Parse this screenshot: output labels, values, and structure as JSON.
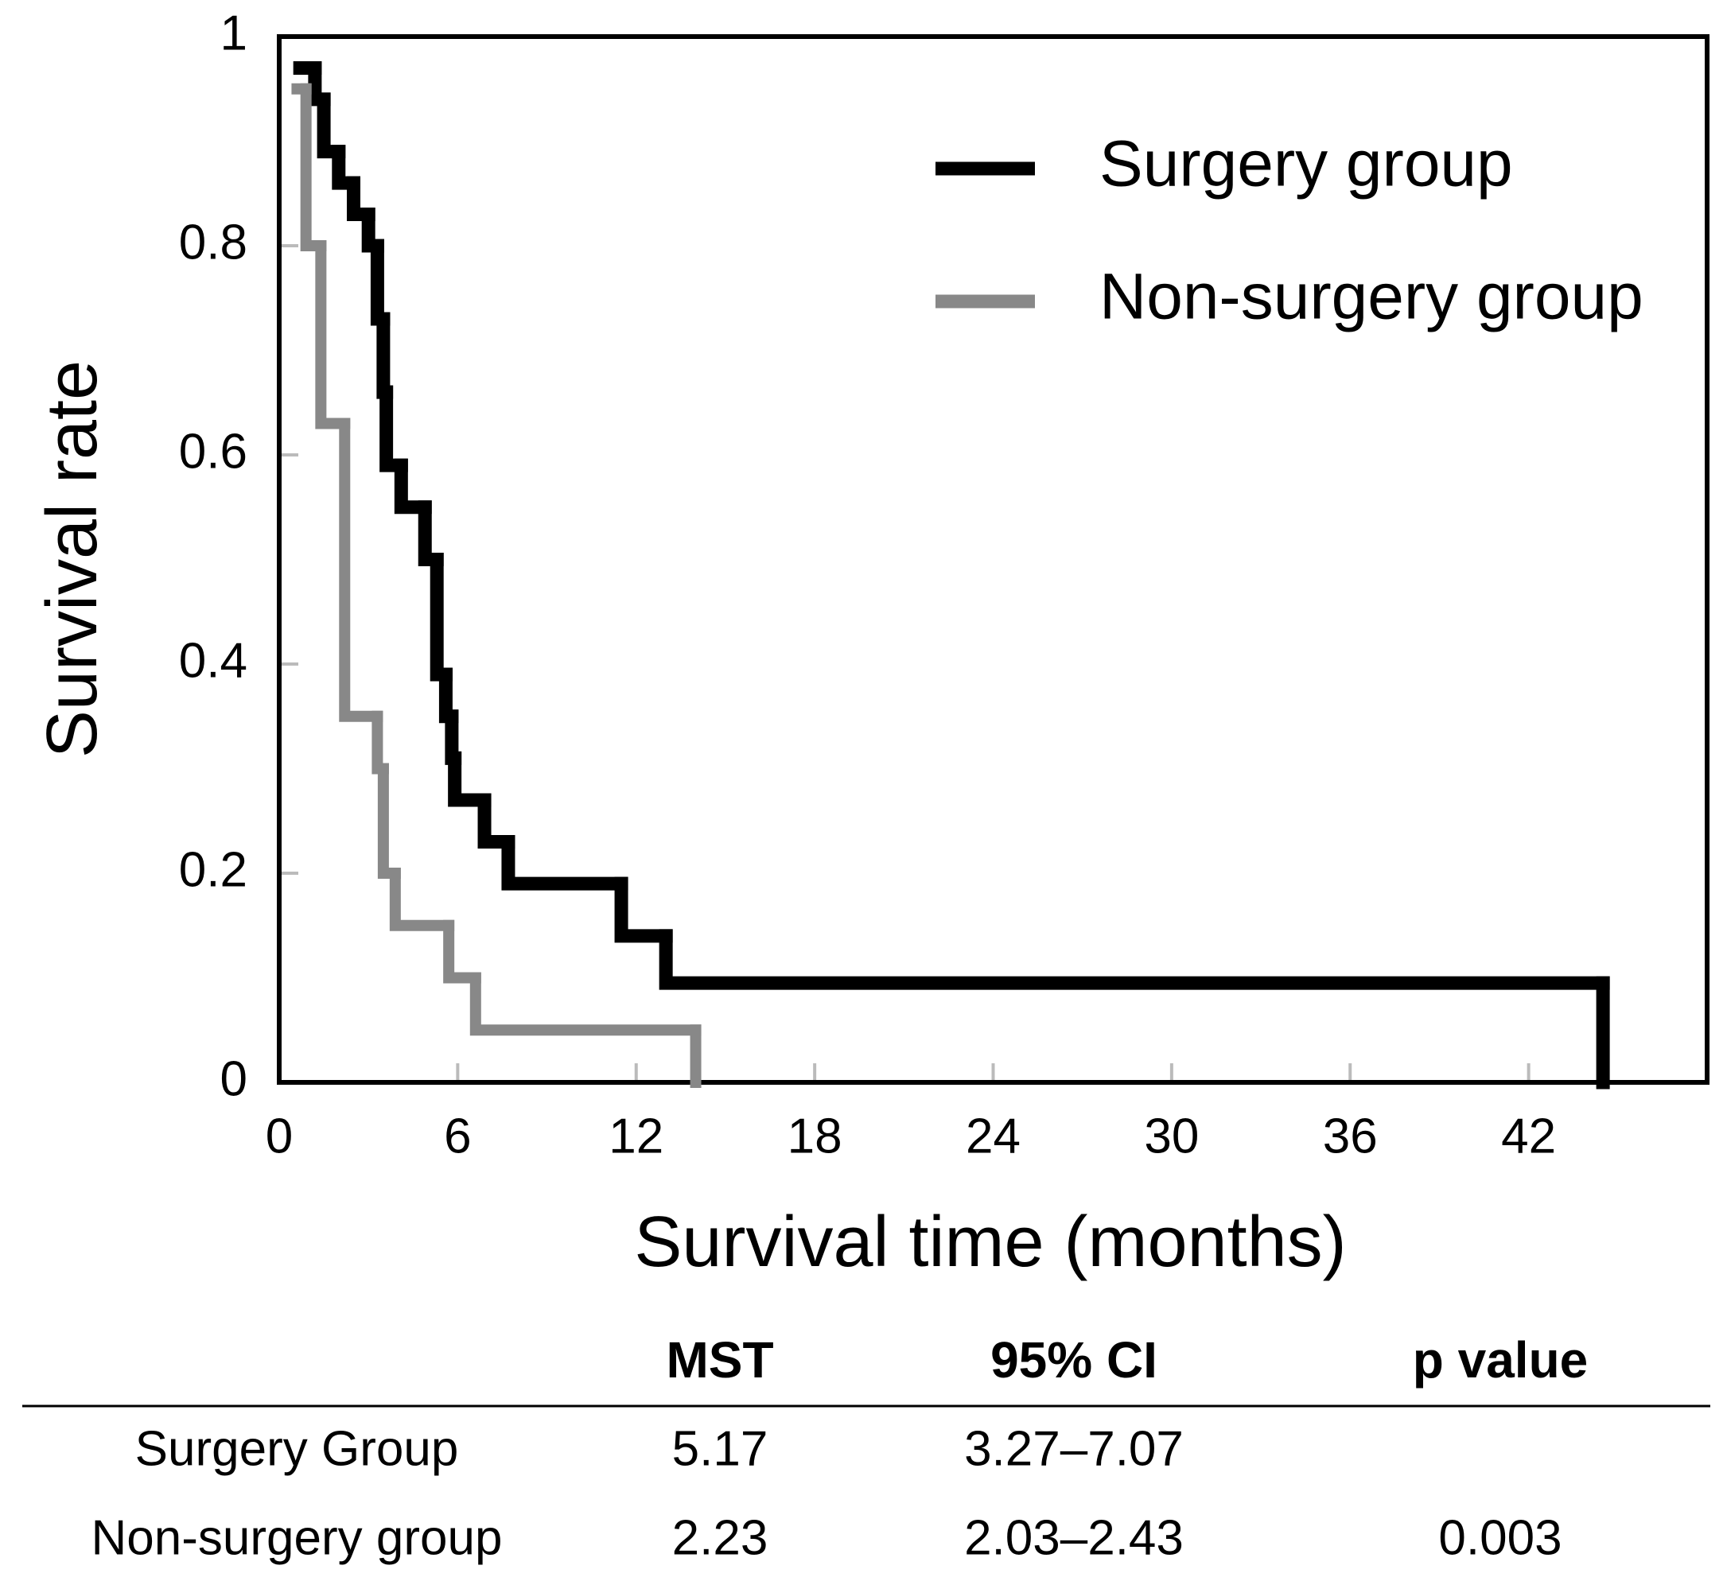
{
  "chart_data": {
    "type": "line",
    "step": true,
    "xlabel": "Survival time (months)",
    "ylabel": "Survival rate",
    "xlim": [
      0,
      48
    ],
    "xticks": [
      0,
      6,
      12,
      18,
      24,
      30,
      36,
      42
    ],
    "ylim": [
      0,
      1
    ],
    "yticks": [
      0,
      0.2,
      0.4,
      0.6,
      0.8,
      1
    ],
    "legend": "upper right",
    "series": [
      {
        "name": "Surgery group",
        "color": "#000000",
        "x": [
          0.7,
          1.2,
          1.5,
          2.0,
          2.5,
          3.0,
          3.3,
          3.5,
          3.6,
          4.1,
          4.9,
          5.3,
          5.6,
          5.8,
          5.9,
          6.9,
          7.7,
          11.5,
          13.0,
          44.5
        ],
        "values": [
          0.97,
          0.94,
          0.89,
          0.86,
          0.83,
          0.8,
          0.73,
          0.66,
          0.59,
          0.55,
          0.5,
          0.39,
          0.35,
          0.31,
          0.27,
          0.23,
          0.19,
          0.14,
          0.095,
          0
        ]
      },
      {
        "name": "Non-surgery group",
        "color": "#888888",
        "x": [
          0.6,
          0.9,
          1.4,
          2.2,
          3.3,
          3.5,
          3.9,
          5.7,
          6.6,
          14.0
        ],
        "values": [
          0.95,
          0.8,
          0.63,
          0.35,
          0.3,
          0.2,
          0.15,
          0.1,
          0.05,
          0
        ]
      }
    ]
  },
  "table": {
    "columns": [
      "MST",
      "95% CI",
      "p value"
    ],
    "rows": [
      {
        "label": "Surgery Group",
        "cells": [
          "5.17",
          "3.27–7.07"
        ]
      },
      {
        "label": "Non-surgery group",
        "cells": [
          "2.23",
          "2.03–2.43",
          "0.003"
        ]
      }
    ]
  }
}
